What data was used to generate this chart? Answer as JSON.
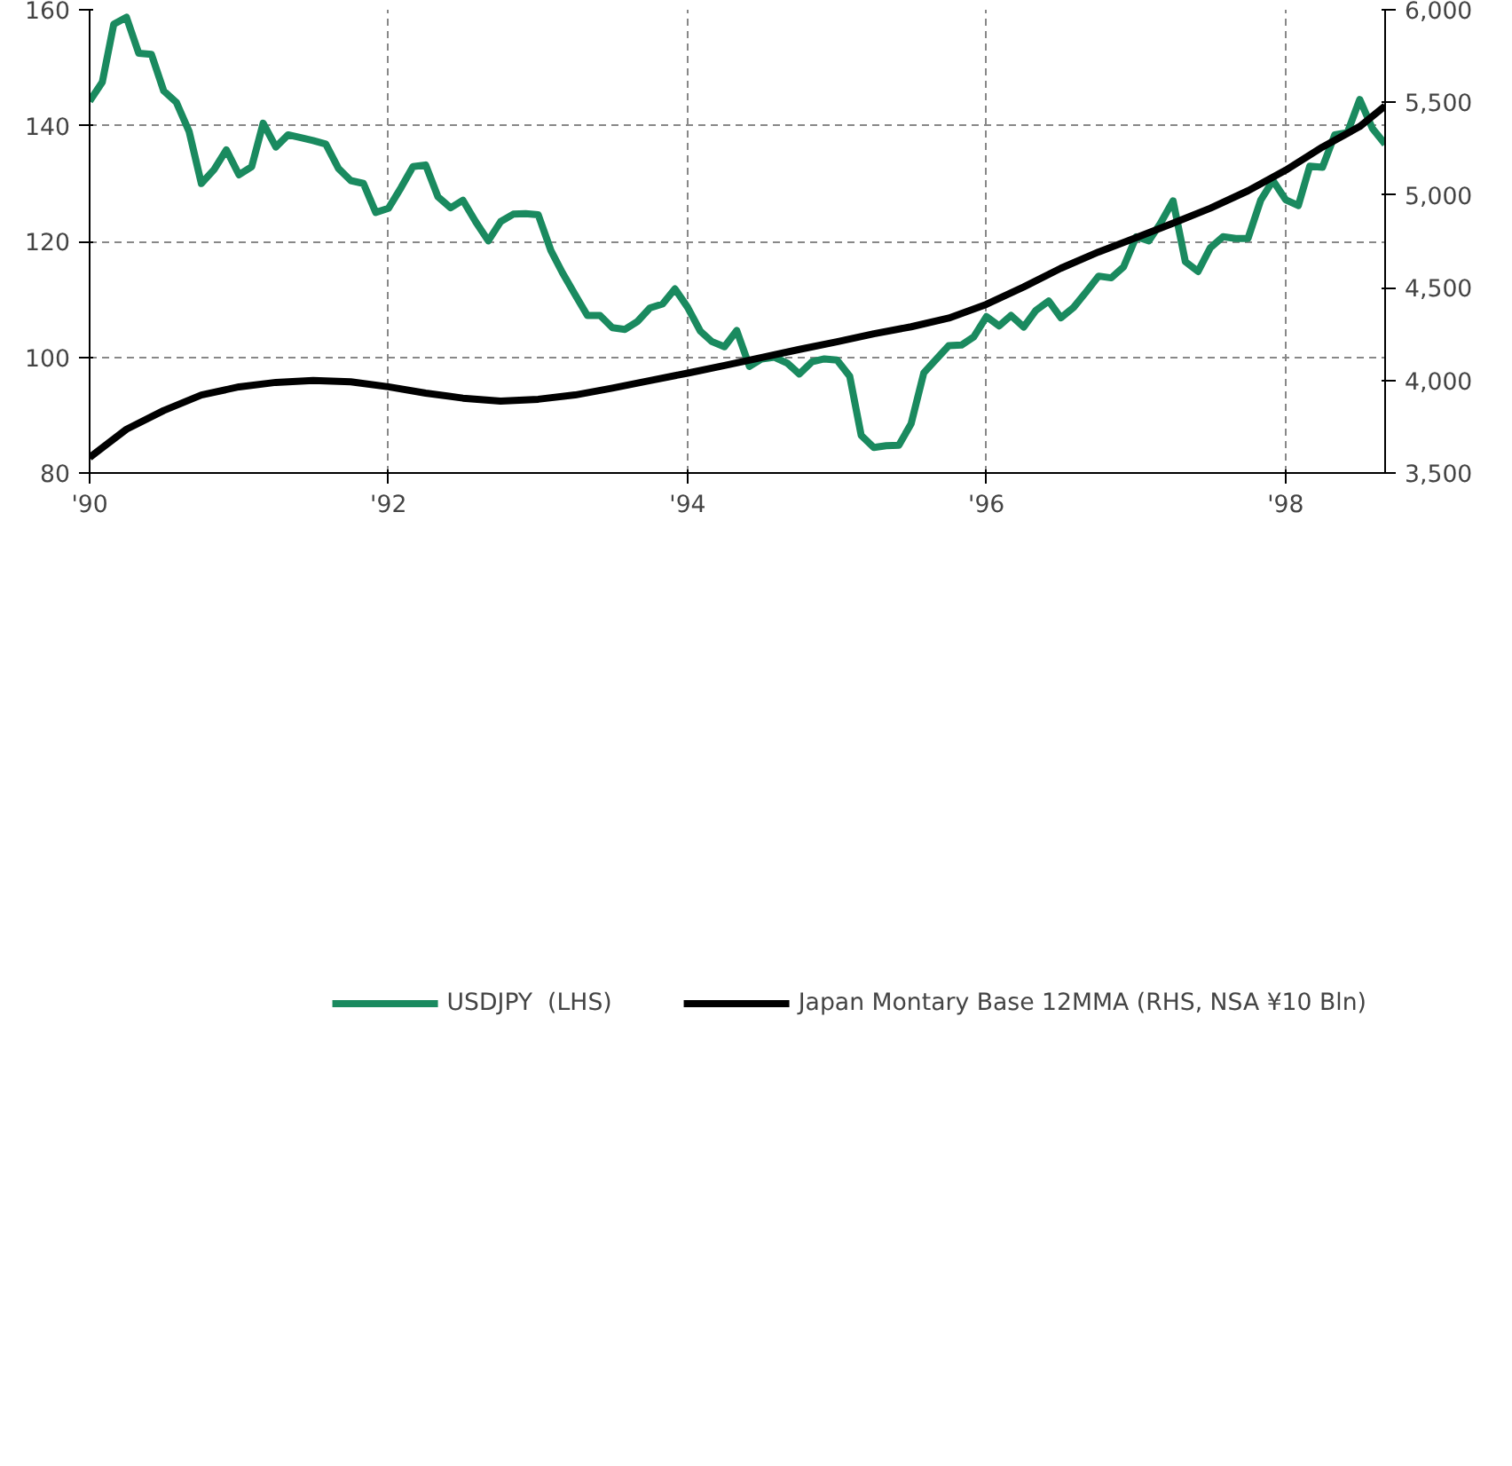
{
  "chart_data": {
    "type": "line",
    "xlim": [
      "1990-01",
      "1998-09"
    ],
    "xticks": [
      {
        "value": "1990-01",
        "label": "'90"
      },
      {
        "value": "1992-01",
        "label": "'92"
      },
      {
        "value": "1994-01",
        "label": "'94"
      },
      {
        "value": "1996-01",
        "label": "'96"
      },
      {
        "value": "1998-01",
        "label": "'98"
      }
    ],
    "ylim": [
      80,
      160
    ],
    "yticks": [
      80,
      100,
      120,
      140,
      160
    ],
    "y2lim": [
      3500,
      6000
    ],
    "y2ticks": [
      {
        "value": 3500,
        "label": "3,500"
      },
      {
        "value": 4000,
        "label": "4,000"
      },
      {
        "value": 4500,
        "label": "4,500"
      },
      {
        "value": 5000,
        "label": "5,000"
      },
      {
        "value": 5500,
        "label": "5,500"
      },
      {
        "value": 6000,
        "label": "6,000"
      }
    ],
    "grid": true,
    "legend": "bottom",
    "line_style": "solid",
    "marker": "none",
    "series": [
      {
        "name": "USDJPY  (LHS)",
        "color": "#1a8a5f",
        "x": [
          "1990-01",
          "1990-02",
          "1990-03",
          "1990-04",
          "1990-05",
          "1990-06",
          "1990-07",
          "1990-08",
          "1990-09",
          "1990-10",
          "1990-11",
          "1990-12",
          "1991-01",
          "1991-02",
          "1991-03",
          "1991-04",
          "1991-05",
          "1991-06",
          "1991-07",
          "1991-08",
          "1991-09",
          "1991-10",
          "1991-11",
          "1991-12",
          "1992-01",
          "1992-02",
          "1992-03",
          "1992-04",
          "1992-05",
          "1992-06",
          "1992-07",
          "1992-08",
          "1992-09",
          "1992-10",
          "1992-11",
          "1992-12",
          "1993-01",
          "1993-02",
          "1993-03",
          "1993-04",
          "1993-05",
          "1993-06",
          "1993-07",
          "1993-08",
          "1993-09",
          "1993-10",
          "1993-11",
          "1993-12",
          "1994-01",
          "1994-02",
          "1994-03",
          "1994-04",
          "1994-05",
          "1994-06",
          "1994-07",
          "1994-08",
          "1994-09",
          "1994-10",
          "1994-11",
          "1994-12",
          "1995-01",
          "1995-02",
          "1995-03",
          "1995-04",
          "1995-05",
          "1995-06",
          "1995-07",
          "1995-08",
          "1995-09",
          "1995-10",
          "1995-11",
          "1995-12",
          "1996-01",
          "1996-02",
          "1996-03",
          "1996-04",
          "1996-05",
          "1996-06",
          "1996-07",
          "1996-08",
          "1996-09",
          "1996-10",
          "1996-11",
          "1996-12",
          "1997-01",
          "1997-02",
          "1997-03",
          "1997-04",
          "1997-05",
          "1997-06",
          "1997-07",
          "1997-08",
          "1997-09",
          "1997-10",
          "1997-11",
          "1997-12",
          "1998-01",
          "1998-02",
          "1998-03",
          "1998-04",
          "1998-05",
          "1998-06",
          "1998-07",
          "1998-08",
          "1998-09"
        ],
        "values": [
          144.2,
          147.5,
          157.5,
          158.7,
          152.5,
          152.3,
          146.0,
          144.0,
          139.0,
          130.0,
          132.4,
          135.8,
          131.5,
          132.9,
          140.4,
          136.3,
          138.4,
          137.9,
          137.4,
          136.8,
          132.6,
          130.5,
          130.0,
          125.0,
          125.7,
          129.3,
          132.9,
          133.2,
          127.7,
          125.8,
          127.1,
          123.4,
          120.1,
          123.4,
          124.7,
          124.8,
          124.6,
          118.4,
          114.6,
          110.8,
          107.2,
          107.2,
          105.1,
          104.8,
          106.2,
          108.5,
          109.2,
          111.8,
          108.6,
          104.5,
          102.7,
          101.8,
          104.6,
          98.4,
          99.7,
          100.0,
          99.0,
          97.1,
          99.2,
          99.7,
          99.5,
          96.7,
          86.5,
          84.4,
          84.7,
          84.8,
          88.5,
          97.3,
          99.7,
          102.0,
          102.1,
          103.5,
          107.0,
          105.4,
          107.2,
          105.2,
          108.1,
          109.7,
          106.8,
          108.6,
          111.3,
          114.0,
          113.7,
          115.6,
          120.8,
          120.1,
          123.1,
          127.0,
          116.5,
          114.8,
          118.9,
          120.8,
          120.5,
          120.5,
          127.1,
          130.5,
          127.2,
          126.2,
          133.0,
          132.8,
          138.4,
          138.8,
          144.5,
          139.5,
          136.8
        ]
      },
      {
        "name": "Japan Montary Base 12MMA (RHS, NSA ¥10 Bln)",
        "color": "#000000",
        "axis": "y2",
        "x": [
          "1990-01",
          "1990-04",
          "1990-07",
          "1990-10",
          "1991-01",
          "1991-04",
          "1991-07",
          "1991-10",
          "1992-01",
          "1992-04",
          "1992-07",
          "1992-10",
          "1993-01",
          "1993-04",
          "1993-07",
          "1993-10",
          "1994-01",
          "1994-04",
          "1994-07",
          "1994-10",
          "1995-01",
          "1995-04",
          "1995-07",
          "1995-10",
          "1996-01",
          "1996-04",
          "1996-07",
          "1996-10",
          "1997-01",
          "1997-04",
          "1997-07",
          "1997-10",
          "1998-01",
          "1998-04",
          "1998-07",
          "1998-09"
        ],
        "values": [
          3584,
          3736,
          3837,
          3921,
          3965,
          3989,
          3999,
          3992,
          3965,
          3931,
          3904,
          3888,
          3898,
          3921,
          3958,
          3999,
          4039,
          4080,
          4123,
          4167,
          4208,
          4251,
          4289,
          4336,
          4410,
          4504,
          4605,
          4693,
          4770,
          4848,
          4929,
          5023,
          5134,
          5259,
          5370,
          5481
        ]
      }
    ]
  }
}
